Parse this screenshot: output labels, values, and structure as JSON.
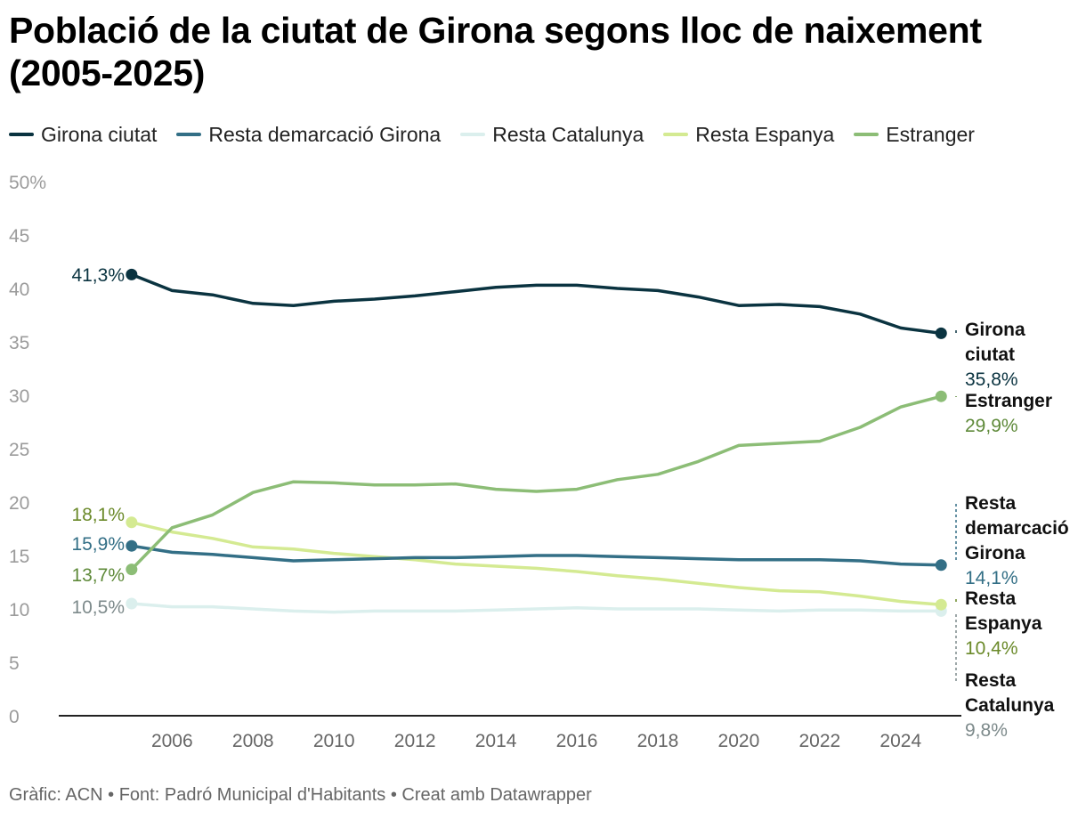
{
  "title": "Població de la ciutat de Girona segons lloc de naixement (2005-2025)",
  "legend": [
    {
      "name": "Girona ciutat",
      "color": "#0a3340"
    },
    {
      "name": "Resta demarcació Girona",
      "color": "#336f86"
    },
    {
      "name": "Resta Catalunya",
      "color": "#dbefed"
    },
    {
      "name": "Resta Espanya",
      "color": "#d4ea92"
    },
    {
      "name": "Estranger",
      "color": "#8cbd76"
    }
  ],
  "footer": {
    "credit": "Gràfic: ACN",
    "separator": "•",
    "source": "Font: Padró Municipal d'Habitants",
    "tool": "Creat amb Datawrapper"
  },
  "chart_data": {
    "type": "line",
    "title": "Població de la ciutat de Girona segons lloc de naixement (2005-2025)",
    "xlabel": "",
    "ylabel": "",
    "x": [
      2005,
      2006,
      2007,
      2008,
      2009,
      2010,
      2011,
      2012,
      2013,
      2014,
      2015,
      2016,
      2017,
      2018,
      2019,
      2020,
      2021,
      2022,
      2023,
      2024,
      2025
    ],
    "xlim": [
      2003.2,
      2025.5
    ],
    "ylim": [
      0,
      50
    ],
    "xticks": [
      2006,
      2008,
      2010,
      2012,
      2014,
      2016,
      2018,
      2020,
      2022,
      2024
    ],
    "yticks": [
      0,
      5,
      10,
      15,
      20,
      25,
      30,
      35,
      40,
      45,
      50
    ],
    "ytick_labels": [
      "0",
      "5",
      "10",
      "15",
      "20",
      "25",
      "30",
      "35",
      "40",
      "45",
      "50%"
    ],
    "series": [
      {
        "name": "Girona ciutat",
        "color": "#0a3340",
        "label_color": "#0a3340",
        "values": [
          41.3,
          39.8,
          39.4,
          38.6,
          38.4,
          38.8,
          39.0,
          39.3,
          39.7,
          40.1,
          40.3,
          40.3,
          40.0,
          39.8,
          39.2,
          38.4,
          38.5,
          38.3,
          37.6,
          36.3,
          35.8
        ],
        "start_label": "41,3%",
        "end_name": [
          "Girona",
          "ciutat"
        ],
        "end_value": "35,8%"
      },
      {
        "name": "Resta demarcació Girona",
        "color": "#336f86",
        "label_color": "#336f86",
        "values": [
          15.9,
          15.3,
          15.1,
          14.8,
          14.5,
          14.6,
          14.7,
          14.8,
          14.8,
          14.9,
          15.0,
          15.0,
          14.9,
          14.8,
          14.7,
          14.6,
          14.6,
          14.6,
          14.5,
          14.2,
          14.1
        ],
        "start_label": "15,9%",
        "end_name": [
          "Resta",
          "demarcació",
          "Girona"
        ],
        "end_value": "14,1%"
      },
      {
        "name": "Resta Catalunya",
        "color": "#dbefed",
        "label_color": "#7d8a8b",
        "values": [
          10.5,
          10.2,
          10.2,
          10.0,
          9.8,
          9.7,
          9.8,
          9.8,
          9.8,
          9.9,
          10.0,
          10.1,
          10.0,
          10.0,
          10.0,
          9.9,
          9.8,
          9.9,
          9.9,
          9.8,
          9.8
        ],
        "start_label": "10,5%",
        "end_name": [
          "Resta",
          "Catalunya"
        ],
        "end_value": "9,8%"
      },
      {
        "name": "Resta Espanya",
        "color": "#d4ea92",
        "label_color": "#6b8a2a",
        "values": [
          18.1,
          17.2,
          16.6,
          15.8,
          15.6,
          15.2,
          14.9,
          14.6,
          14.2,
          14.0,
          13.8,
          13.5,
          13.1,
          12.8,
          12.4,
          12.0,
          11.7,
          11.6,
          11.2,
          10.7,
          10.4
        ],
        "start_label": "18,1%",
        "end_name": [
          "Resta",
          "Espanya"
        ],
        "end_value": "10,4%"
      },
      {
        "name": "Estranger",
        "color": "#8cbd76",
        "label_color": "#5f8a3a",
        "values": [
          13.7,
          17.6,
          18.8,
          20.9,
          21.9,
          21.8,
          21.6,
          21.6,
          21.7,
          21.2,
          21.0,
          21.2,
          22.1,
          22.6,
          23.8,
          25.3,
          25.5,
          25.7,
          27.0,
          28.9,
          29.9
        ],
        "start_label": "13,7%",
        "end_name": [
          "Estranger"
        ],
        "end_value": "29,9%"
      }
    ]
  }
}
